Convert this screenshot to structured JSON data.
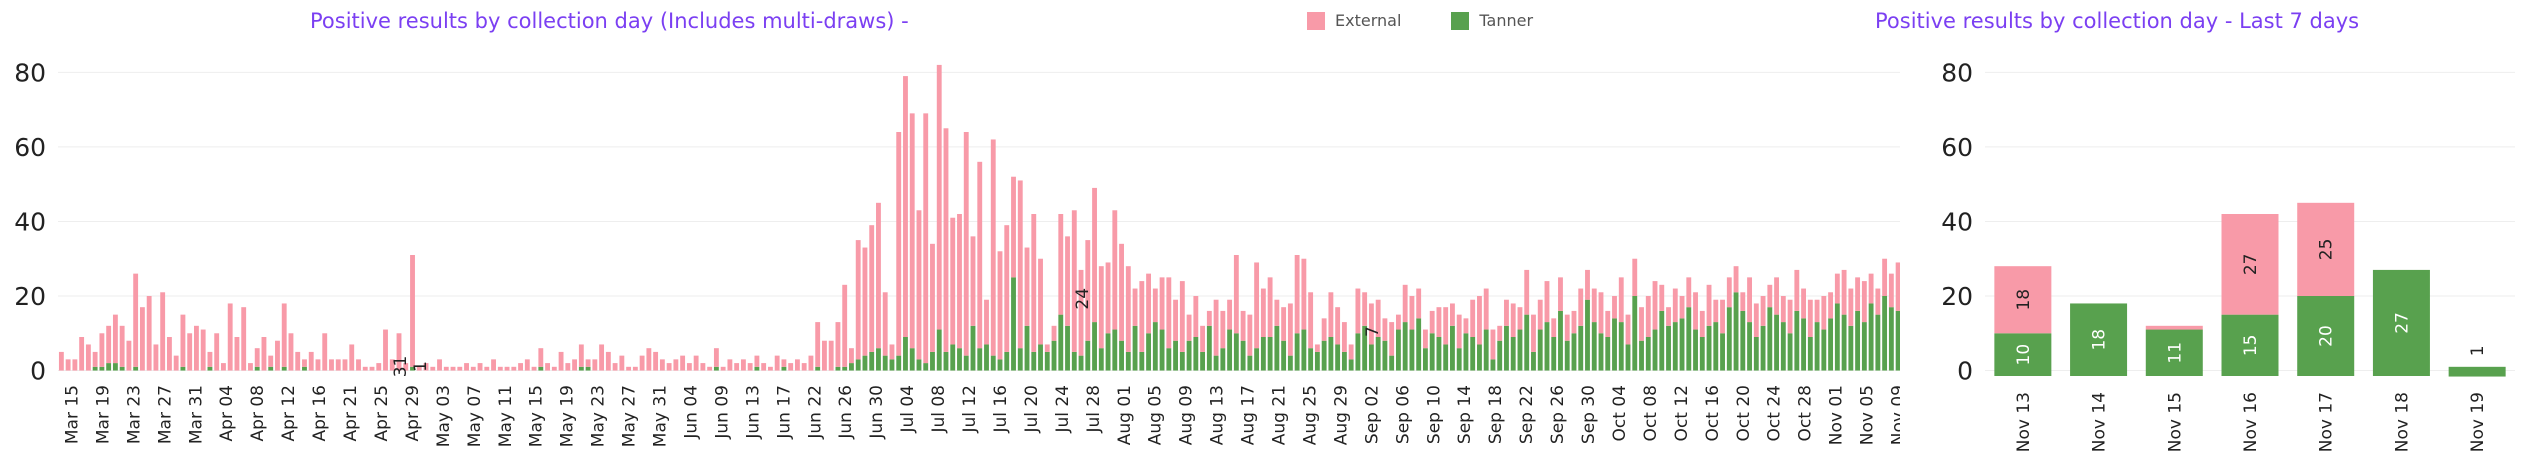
{
  "legend": {
    "items": [
      {
        "label": "External",
        "color": "#f89aa8"
      },
      {
        "label": "Tanner",
        "color": "#58a14e"
      }
    ]
  },
  "chart_data": [
    {
      "type": "bar",
      "stacked": true,
      "title": "Positive results by collection day (Includes multi-draws) -",
      "ylim": [
        -2,
        86
      ],
      "yticks": [
        0,
        20,
        40,
        60,
        80
      ],
      "tick_labels": [
        "Mar 15",
        "Mar 19",
        "Mar 23",
        "Mar 27",
        "Mar 31",
        "Apr 04",
        "Apr 08",
        "Apr 12",
        "Apr 16",
        "Apr 21",
        "Apr 25",
        "Apr 29",
        "May 03",
        "May 07",
        "May 11",
        "May 15",
        "May 19",
        "May 23",
        "May 27",
        "May 31",
        "Jun 04",
        "Jun 09",
        "Jun 13",
        "Jun 17",
        "Jun 22",
        "Jun 26",
        "Jun 30",
        "Jul 04",
        "Jul 08",
        "Jul 12",
        "Jul 16",
        "Jul 20",
        "Jul 24",
        "Jul 28",
        "Aug 01",
        "Aug 05",
        "Aug 09",
        "Aug 13",
        "Aug 17",
        "Aug 21",
        "Aug 25",
        "Aug 29",
        "Sep 02",
        "Sep 06",
        "Sep 10",
        "Sep 14",
        "Sep 18",
        "Sep 22",
        "Sep 26",
        "Sep 30",
        "Oct 04",
        "Oct 08",
        "Oct 12",
        "Oct 16",
        "Oct 20",
        "Oct 24",
        "Oct 28",
        "Nov 01",
        "Nov 05",
        "Nov 09"
      ],
      "series": [
        {
          "name": "Tanner",
          "color": "#58a14e",
          "values": [
            0,
            0,
            0,
            0,
            0,
            1,
            1,
            2,
            2,
            1,
            0,
            1,
            0,
            0,
            0,
            0,
            0,
            0,
            1,
            0,
            0,
            0,
            1,
            0,
            0,
            0,
            0,
            0,
            0,
            1,
            0,
            1,
            0,
            1,
            0,
            0,
            1,
            0,
            0,
            0,
            0,
            0,
            0,
            0,
            0,
            0,
            0,
            0,
            0,
            0,
            0,
            0,
            1,
            0,
            0,
            0,
            0,
            0,
            0,
            0,
            0,
            0,
            0,
            0,
            0,
            0,
            0,
            0,
            0,
            0,
            0,
            1,
            0,
            0,
            0,
            0,
            0,
            1,
            1,
            0,
            0,
            0,
            0,
            0,
            0,
            0,
            0,
            0,
            0,
            0,
            0,
            0,
            0,
            0,
            0,
            0,
            0,
            1,
            0,
            0,
            0,
            0,
            0,
            1,
            0,
            0,
            0,
            1,
            0,
            0,
            0,
            0,
            1,
            0,
            0,
            1,
            1,
            2,
            3,
            4,
            5,
            6,
            4,
            3,
            4,
            9,
            6,
            3,
            2,
            5,
            11,
            5,
            7,
            6,
            4,
            12,
            6,
            7,
            4,
            3,
            5,
            25,
            6,
            12,
            5,
            7,
            5,
            8,
            15,
            12,
            5,
            4,
            8,
            13,
            6,
            10,
            11,
            8,
            5,
            12,
            5,
            10,
            13,
            11,
            6,
            8,
            5,
            8,
            9,
            5,
            12,
            4,
            6,
            11,
            10,
            8,
            4,
            6,
            9,
            9,
            12,
            8,
            4,
            10,
            11,
            6,
            5,
            8,
            9,
            7,
            5,
            3,
            10,
            12,
            7,
            9,
            8,
            4,
            11,
            13,
            11,
            14,
            6,
            10,
            9,
            7,
            12,
            6,
            10,
            9,
            7,
            11,
            3,
            8,
            12,
            9,
            11,
            15,
            5,
            11,
            13,
            9,
            16,
            8,
            10,
            12,
            19,
            13,
            10,
            9,
            14,
            13,
            7,
            20,
            8,
            9,
            11,
            16,
            12,
            13,
            14,
            17,
            11,
            9,
            12,
            13,
            10,
            17,
            21,
            16,
            13,
            9,
            12,
            17,
            15,
            13,
            10,
            16,
            14,
            9,
            13,
            11,
            14,
            18,
            15,
            12,
            16,
            13,
            18,
            15,
            20,
            17,
            16,
            19,
            21
          ]
        },
        {
          "name": "External",
          "color": "#f89aa8",
          "values": [
            5,
            3,
            3,
            9,
            7,
            4,
            9,
            10,
            13,
            11,
            8,
            25,
            17,
            20,
            7,
            21,
            9,
            4,
            14,
            10,
            12,
            11,
            4,
            10,
            2,
            18,
            9,
            17,
            2,
            5,
            9,
            3,
            8,
            17,
            10,
            5,
            2,
            5,
            3,
            10,
            3,
            3,
            3,
            7,
            3,
            1,
            1,
            2,
            11,
            3,
            10,
            2,
            30,
            1,
            2,
            1,
            3,
            1,
            1,
            1,
            2,
            1,
            2,
            1,
            3,
            1,
            1,
            1,
            2,
            3,
            1,
            5,
            2,
            1,
            5,
            2,
            3,
            6,
            2,
            3,
            7,
            5,
            2,
            4,
            1,
            1,
            4,
            6,
            5,
            3,
            2,
            3,
            4,
            2,
            4,
            2,
            1,
            5,
            1,
            3,
            2,
            3,
            2,
            3,
            2,
            1,
            4,
            2,
            2,
            3,
            2,
            4,
            12,
            8,
            8,
            12,
            22,
            4,
            32,
            29,
            34,
            39,
            17,
            4,
            60,
            70,
            63,
            40,
            67,
            29,
            71,
            60,
            34,
            36,
            60,
            24,
            50,
            12,
            58,
            29,
            34,
            27,
            45,
            21,
            37,
            23,
            2,
            4,
            27,
            24,
            38,
            23,
            27,
            36,
            22,
            19,
            32,
            26,
            23,
            10,
            19,
            16,
            9,
            14,
            19,
            11,
            19,
            7,
            11,
            7,
            4,
            15,
            10,
            8,
            21,
            8,
            11,
            23,
            13,
            16,
            7,
            9,
            14,
            21,
            19,
            15,
            2,
            6,
            12,
            10,
            8,
            4,
            12,
            9,
            11,
            10,
            6,
            9,
            4,
            10,
            9,
            8,
            5,
            6,
            8,
            10,
            6,
            9,
            4,
            10,
            13,
            11,
            8,
            4,
            7,
            9,
            6,
            12,
            10,
            8,
            11,
            5,
            9,
            7,
            6,
            10,
            8,
            9,
            11,
            7,
            6,
            12,
            8,
            10,
            9,
            11,
            13,
            7,
            5,
            9,
            6,
            8,
            10,
            7,
            11,
            6,
            9,
            8,
            7,
            5,
            12,
            9,
            8,
            6,
            10,
            7,
            9,
            11,
            8,
            10,
            6,
            9,
            7,
            8,
            12,
            10,
            9,
            11,
            8,
            7,
            10,
            9,
            13,
            15,
            8
          ]
        }
      ],
      "data_labels": [
        {
          "index": 51,
          "text": "31"
        },
        {
          "index": 54,
          "text": "1"
        },
        {
          "index": 152,
          "text": "24"
        },
        {
          "index": 195,
          "text": "7"
        }
      ]
    },
    {
      "type": "bar",
      "stacked": true,
      "title": "Positive results by collection day - Last 7 days",
      "ylim": [
        -2,
        86
      ],
      "yticks": [
        0,
        20,
        40,
        60,
        80
      ],
      "categories": [
        "Nov 13",
        "Nov 14",
        "Nov 15",
        "Nov 16",
        "Nov 17",
        "Nov 18",
        "Nov 19"
      ],
      "series": [
        {
          "name": "Tanner",
          "color": "#58a14e",
          "values": [
            10,
            18,
            11,
            15,
            20,
            27,
            1
          ]
        },
        {
          "name": "External",
          "color": "#f89aa8",
          "values": [
            18,
            0,
            1,
            27,
            25,
            0,
            0
          ]
        }
      ],
      "data_labels": {
        "Tanner": [
          "10",
          "18",
          "11",
          "15",
          "20",
          "27",
          "1"
        ],
        "External": [
          "18",
          "",
          "",
          "27",
          "25",
          "",
          ""
        ]
      }
    }
  ]
}
